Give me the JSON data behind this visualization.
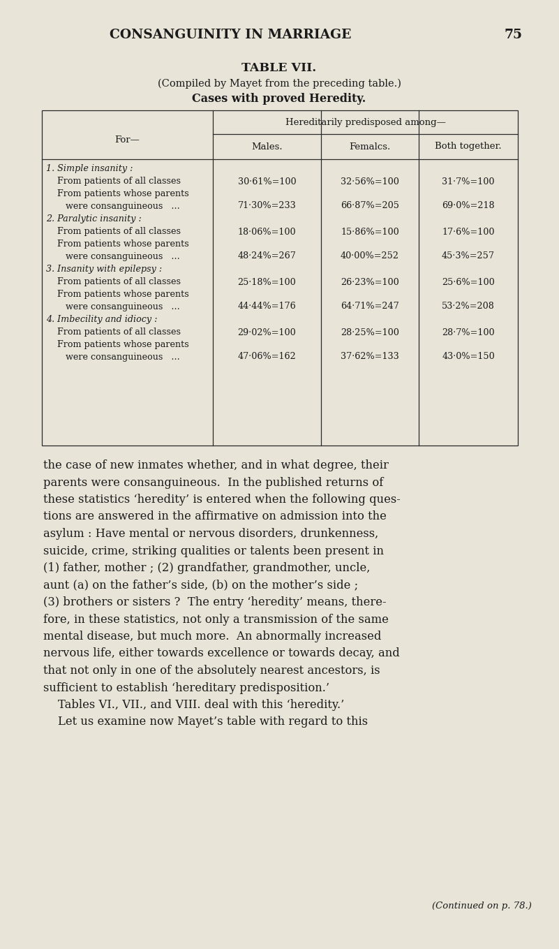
{
  "bg_color": "#e8e4d8",
  "text_color": "#1a1a1a",
  "page_header": "CONSANGUINITY IN MARRIAGE",
  "page_number": "75",
  "table_title": "TABLE VII.",
  "table_subtitle": "(Compiled by Mayet from the preceding table.)",
  "table_bold_title": "Cases with proved Heredity.",
  "col_header_span": "Hereditarily predisposed among—",
  "col_headers": [
    "Males.",
    "Femalcs.",
    "Both together."
  ],
  "row_label_header": "For—",
  "table_rows": [
    {
      "label": "1. Simple insanity :",
      "indent": 0,
      "is_heading": true,
      "m": "",
      "f": "",
      "b": ""
    },
    {
      "label": "From patients of all classes",
      "indent": 1,
      "is_heading": false,
      "m": "30·61%=100",
      "f": "32·56%=100",
      "b": "31·7%=100"
    },
    {
      "label": "From patients whose parents",
      "indent": 1,
      "is_heading": false,
      "m": "",
      "f": "",
      "b": ""
    },
    {
      "label": "were consanguineous   ...",
      "indent": 2,
      "is_heading": false,
      "m": "71·30%=233",
      "f": "66·87%=205",
      "b": "69·0%=218"
    },
    {
      "label": "2. Paralytic insanity :",
      "indent": 0,
      "is_heading": true,
      "m": "",
      "f": "",
      "b": ""
    },
    {
      "label": "From patients of all classes",
      "indent": 1,
      "is_heading": false,
      "m": "18·06%=100",
      "f": "15·86%=100",
      "b": "17·6%=100"
    },
    {
      "label": "From patients whose parents",
      "indent": 1,
      "is_heading": false,
      "m": "",
      "f": "",
      "b": ""
    },
    {
      "label": "were consanguineous   ...",
      "indent": 2,
      "is_heading": false,
      "m": "48·24%=267",
      "f": "40·00%=252",
      "b": "45·3%=257"
    },
    {
      "label": "3. Insanity with epilepsy :",
      "indent": 0,
      "is_heading": true,
      "m": "",
      "f": "",
      "b": ""
    },
    {
      "label": "From patients of all classes",
      "indent": 1,
      "is_heading": false,
      "m": "25·18%=100",
      "f": "26·23%=100",
      "b": "25·6%=100"
    },
    {
      "label": "From patients whose parents",
      "indent": 1,
      "is_heading": false,
      "m": "",
      "f": "",
      "b": ""
    },
    {
      "label": "were consanguineous   ...",
      "indent": 2,
      "is_heading": false,
      "m": "44·44%=176",
      "f": "64·71%=247",
      "b": "53·2%=208"
    },
    {
      "label": "4. Imbecility and idiocy :",
      "indent": 0,
      "is_heading": true,
      "m": "",
      "f": "",
      "b": ""
    },
    {
      "label": "From patients of all classes",
      "indent": 1,
      "is_heading": false,
      "m": "29·02%=100",
      "f": "28·25%=100",
      "b": "28·7%=100"
    },
    {
      "label": "From patients whose parents",
      "indent": 1,
      "is_heading": false,
      "m": "",
      "f": "",
      "b": ""
    },
    {
      "label": "were consanguineous   ...",
      "indent": 2,
      "is_heading": false,
      "m": "47·06%=162",
      "f": "37·62%=133",
      "b": "43·0%=150"
    }
  ],
  "body_lines": [
    "the case of new inmates whether, and in what degree, their",
    "parents were consanguineous.  In the published returns of",
    "these statistics ‘heredity’ is entered when the following ques-",
    "tions are answered in the affirmative on admission into the",
    "asylum : Have mental or nervous disorders, drunkenness,",
    "suicide, crime, striking qualities or talents been present in",
    "(1) father, mother ; (2) grandfather, grandmother, uncle,",
    "aunt (a) on the father’s side, (b) on the mother’s side ;",
    "(3) brothers or sisters ?  The entry ‘heredity’ means, there-",
    "fore, in these statistics, not only a transmission of the same",
    "mental disease, but much more.  An abnormally increased",
    "nervous life, either towards excellence or towards decay, and",
    "that not only in one of the absolutely nearest ancestors, is",
    "sufficient to establish ‘hereditary predisposition.’",
    "    Tables VI., VII., and VIII. deal with this ‘heredity.’",
    "    Let us examine now Mayet’s table with regard to this"
  ],
  "footer_text": "(Continued on p. 78.)"
}
